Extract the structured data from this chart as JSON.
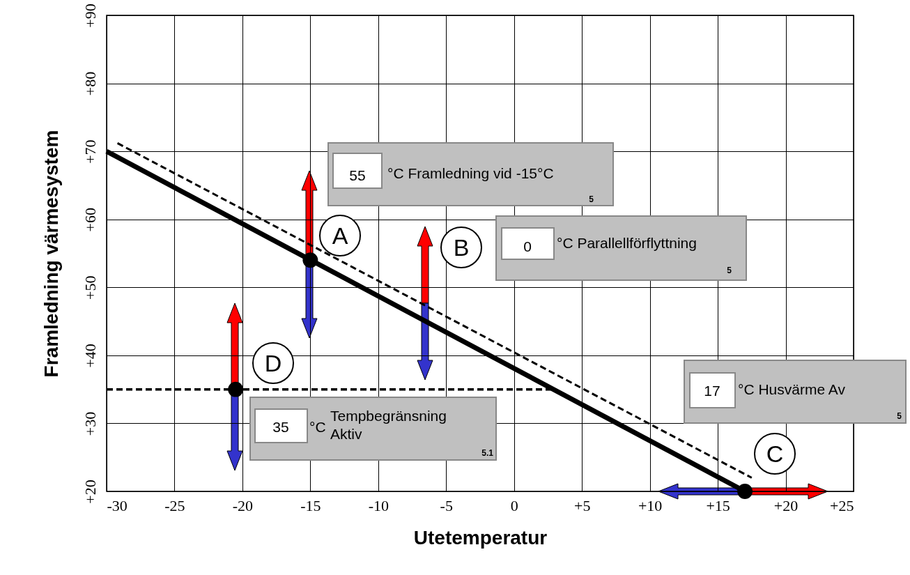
{
  "chart_data": {
    "type": "line",
    "xlabel": "Utetemperatur",
    "ylabel": "Framledning värmesystem",
    "xlim": [
      -30,
      25
    ],
    "ylim": [
      20,
      90
    ],
    "xticks": [
      -30,
      -25,
      -20,
      -15,
      -10,
      -5,
      0,
      {
        "value": 5,
        "label": "+5"
      },
      {
        "value": 10,
        "label": "+10"
      },
      {
        "value": 15,
        "label": "+15"
      },
      {
        "value": 20,
        "label": "+20"
      },
      {
        "value": 25,
        "label": "+25"
      }
    ],
    "yticks": [
      {
        "value": 20,
        "label": "+20"
      },
      {
        "value": 30,
        "label": "+30"
      },
      {
        "value": 40,
        "label": "+40"
      },
      {
        "value": 50,
        "label": "+50"
      },
      {
        "value": 60,
        "label": "+60"
      },
      {
        "value": 70,
        "label": "+70"
      },
      {
        "value": 80,
        "label": "+80"
      },
      {
        "value": 90,
        "label": "+90"
      }
    ],
    "grid": true,
    "series": [
      {
        "color": "#000000",
        "line_style": "solid",
        "x": [
          -30,
          17
        ],
        "values": [
          70,
          20
        ]
      },
      {
        "color": "#000000",
        "line_style": "dashed",
        "x": [
          -29.2,
          17.5
        ],
        "values": [
          71.2,
          22
        ]
      },
      {
        "color": "#000000",
        "line_style": "dashed",
        "x": [
          -30,
          2.7
        ],
        "values": [
          35,
          35
        ]
      },
      {
        "type": "scatter",
        "color": "#000000",
        "marker": "circle",
        "x": [
          -15,
          17,
          -20.5
        ],
        "values": [
          54,
          20,
          35
        ]
      }
    ],
    "annotations": [
      "A",
      "B",
      "C",
      "D",
      "55",
      "°C Framledning vid -15°C",
      "5",
      "0",
      "°C Parallellförflyttning",
      "5",
      "17",
      "°C Husvärme Av",
      "5",
      "35",
      "°C",
      "Tempbegränsning Aktiv",
      "5.1"
    ]
  }
}
